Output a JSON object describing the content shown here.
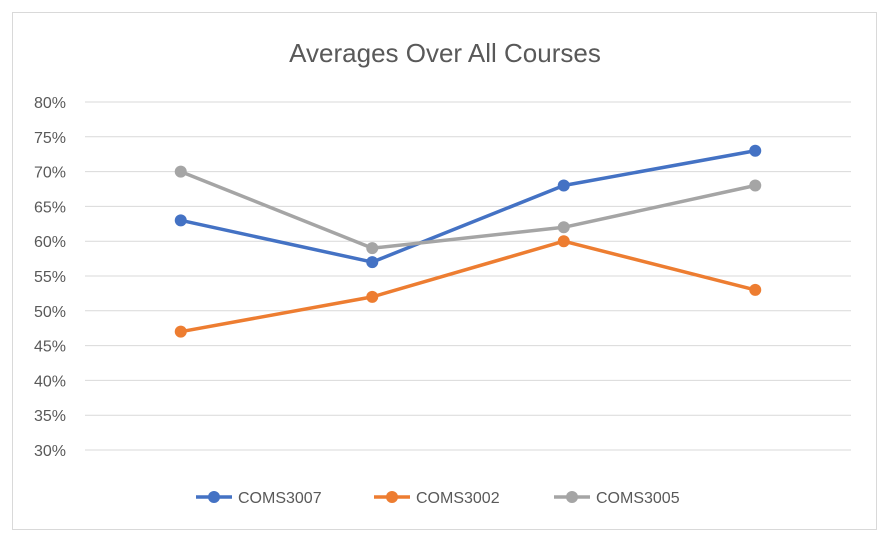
{
  "chart_data": {
    "type": "line",
    "title": "Averages Over All Courses",
    "xlabel": "",
    "ylabel": "",
    "categories": [
      "",
      "",
      "",
      ""
    ],
    "ylim": [
      30,
      80
    ],
    "ytick_step": 5,
    "ytick_suffix": "%",
    "grid": true,
    "legend_position": "bottom",
    "series": [
      {
        "name": "COMS3007",
        "color": "#4472c4",
        "values": [
          63,
          57,
          68,
          73
        ]
      },
      {
        "name": "COMS3002",
        "color": "#ed7d31",
        "values": [
          47,
          52,
          60,
          53
        ]
      },
      {
        "name": "COMS3005",
        "color": "#a5a5a5",
        "values": [
          70,
          59,
          62,
          68
        ]
      }
    ]
  }
}
